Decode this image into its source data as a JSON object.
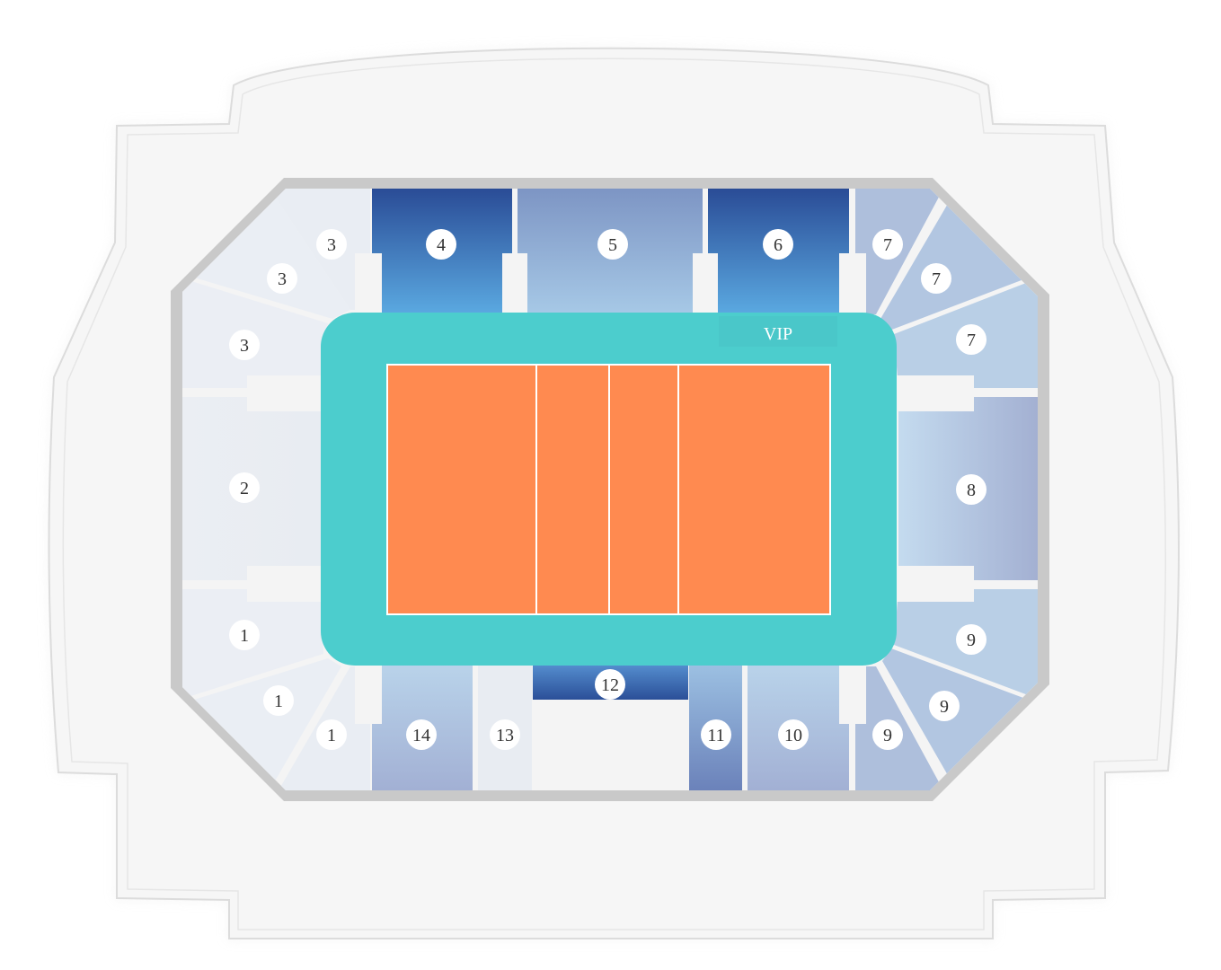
{
  "venue": {
    "vip_label": "VIP",
    "colors": {
      "outer_shell": "#f6f6f6",
      "shell_outline": "#dcdcdc",
      "bowl_rim": "#c9c9c9",
      "bowl_floor": "#f4f4f4",
      "court_surround": "#4ccdcd",
      "court": "#ff8a50",
      "court_lines": "#ffffff",
      "section_light": "#e9edf3",
      "section_grey_blue": "#a7b4d4",
      "section_blue_dark": "#2b4f98",
      "section_blue_light": "#5aa5de",
      "label_bg": "#ffffff",
      "label_text": "#333333"
    }
  },
  "sections": [
    {
      "key": "s1a",
      "label": "1"
    },
    {
      "key": "s1b",
      "label": "1"
    },
    {
      "key": "s1c",
      "label": "1"
    },
    {
      "key": "s2",
      "label": "2"
    },
    {
      "key": "s3a",
      "label": "3"
    },
    {
      "key": "s3b",
      "label": "3"
    },
    {
      "key": "s3c",
      "label": "3"
    },
    {
      "key": "s4",
      "label": "4"
    },
    {
      "key": "s5",
      "label": "5"
    },
    {
      "key": "s6",
      "label": "6"
    },
    {
      "key": "s7a",
      "label": "7"
    },
    {
      "key": "s7b",
      "label": "7"
    },
    {
      "key": "s7c",
      "label": "7"
    },
    {
      "key": "s8",
      "label": "8"
    },
    {
      "key": "s9a",
      "label": "9"
    },
    {
      "key": "s9b",
      "label": "9"
    },
    {
      "key": "s9c",
      "label": "9"
    },
    {
      "key": "s10",
      "label": "10"
    },
    {
      "key": "s11",
      "label": "11"
    },
    {
      "key": "s12",
      "label": "12"
    },
    {
      "key": "s13",
      "label": "13"
    },
    {
      "key": "s14",
      "label": "14"
    }
  ]
}
